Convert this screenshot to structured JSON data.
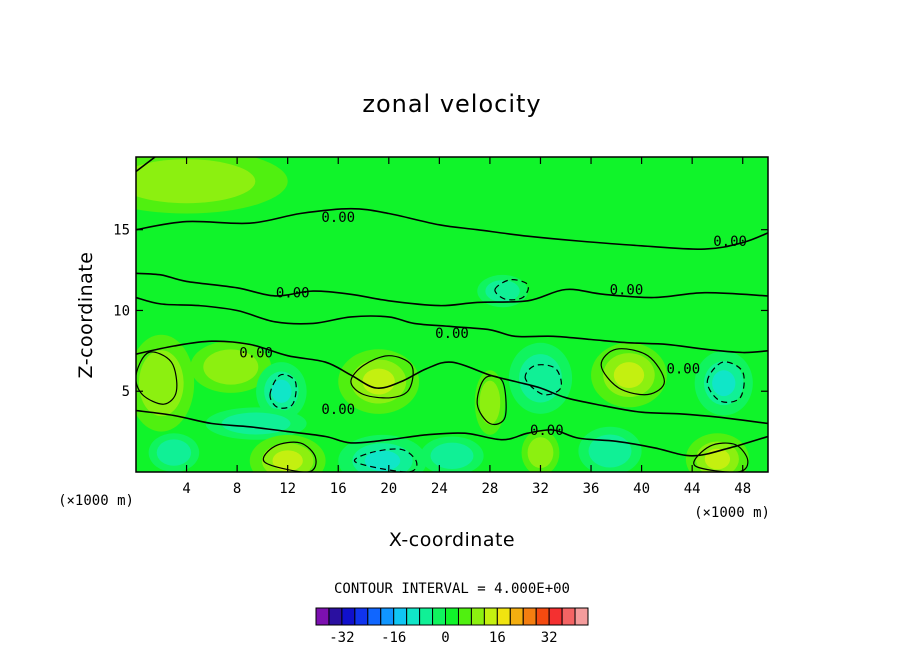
{
  "chart_data": {
    "type": "contour",
    "title": "zonal velocity",
    "xlabel": "X-coordinate",
    "ylabel": "Z-coordinate",
    "x_unit": "(×1000 m)",
    "y_unit": "(×1000 m)",
    "xlim": [
      0,
      50
    ],
    "ylim": [
      0,
      19.5
    ],
    "x_ticks": [
      4,
      8,
      12,
      16,
      20,
      24,
      28,
      32,
      36,
      40,
      44,
      48
    ],
    "y_ticks": [
      5,
      10,
      15
    ],
    "contour_interval_text": "CONTOUR INTERVAL = 4.000E+00",
    "contour_labels": [
      {
        "text": "0.00",
        "x": 16.0,
        "y": 15.8
      },
      {
        "text": "0.00",
        "x": 47.0,
        "y": 14.3
      },
      {
        "text": "0.00",
        "x": 12.4,
        "y": 11.1
      },
      {
        "text": "0.00",
        "x": 38.8,
        "y": 11.3
      },
      {
        "text": "0.00",
        "x": 25.0,
        "y": 8.6
      },
      {
        "text": "0.00",
        "x": 9.5,
        "y": 7.4
      },
      {
        "text": "0.00",
        "x": 43.3,
        "y": 6.4
      },
      {
        "text": "0.00",
        "x": 16.0,
        "y": 3.9
      },
      {
        "text": "0.00",
        "x": 32.5,
        "y": 2.6
      }
    ],
    "colorbar": {
      "colors": [
        "#7c10b0",
        "#2a10a0",
        "#1010cc",
        "#1034ee",
        "#1066ff",
        "#1096ff",
        "#10c6f4",
        "#10e6c8",
        "#10f096",
        "#10f45e",
        "#10f42a",
        "#50f010",
        "#8cf010",
        "#c4f010",
        "#f0e410",
        "#f4ae10",
        "#f47e10",
        "#f44a10",
        "#f43030",
        "#f46464",
        "#f49c9c"
      ],
      "tick_labels": [
        "-32",
        "-16",
        "0",
        "16",
        "32"
      ],
      "tick_values": [
        -32,
        -16,
        0,
        16,
        32
      ],
      "range": [
        -40,
        44
      ]
    },
    "field_colors": {
      "bg": "#10f42a",
      "pos1": "#50f010",
      "pos2": "#8cf010",
      "pos3": "#c4f010",
      "neg1": "#10f45e",
      "neg2": "#10f096",
      "neg3": "#10e6c8"
    },
    "blobs": [
      {
        "x": 2.0,
        "y": 5.5,
        "rx": 2.6,
        "ry": 3.0,
        "v": 5
      },
      {
        "x": 7.5,
        "y": 6.5,
        "rx": 3.2,
        "ry": 1.6,
        "v": 5
      },
      {
        "x": 11.5,
        "y": 5.0,
        "rx": 2.0,
        "ry": 1.8,
        "v": -9
      },
      {
        "x": 9.5,
        "y": 3.0,
        "rx": 4.0,
        "ry": 1.0,
        "v": -5
      },
      {
        "x": 12.0,
        "y": 0.7,
        "rx": 3.0,
        "ry": 1.6,
        "v": 10
      },
      {
        "x": 19.2,
        "y": 5.6,
        "rx": 3.2,
        "ry": 2.0,
        "v": 10
      },
      {
        "x": 19.5,
        "y": 0.7,
        "rx": 3.5,
        "ry": 1.6,
        "v": -9
      },
      {
        "x": 28.0,
        "y": 4.3,
        "rx": 1.2,
        "ry": 2.0,
        "v": 5
      },
      {
        "x": 32.0,
        "y": 5.8,
        "rx": 2.5,
        "ry": 2.2,
        "v": -7
      },
      {
        "x": 32.0,
        "y": 1.2,
        "rx": 1.5,
        "ry": 1.4,
        "v": 5
      },
      {
        "x": 29.0,
        "y": 11.2,
        "rx": 2.0,
        "ry": 1.0,
        "v": -5
      },
      {
        "x": 39.0,
        "y": 6.0,
        "rx": 3.0,
        "ry": 2.0,
        "v": 10
      },
      {
        "x": 37.5,
        "y": 1.3,
        "rx": 2.5,
        "ry": 1.5,
        "v": -5
      },
      {
        "x": 46.5,
        "y": 5.5,
        "rx": 2.3,
        "ry": 2.0,
        "v": -8
      },
      {
        "x": 46.0,
        "y": 0.8,
        "rx": 2.5,
        "ry": 1.6,
        "v": 10
      },
      {
        "x": 3.0,
        "y": 1.2,
        "rx": 2.0,
        "ry": 1.2,
        "v": -5
      },
      {
        "x": 25.0,
        "y": 1.0,
        "rx": 2.5,
        "ry": 1.2,
        "v": -5
      },
      {
        "x": 4.0,
        "y": 18.0,
        "rx": 8.0,
        "ry": 2.0,
        "v": 5
      }
    ],
    "zero_contours": [
      [
        [
          0,
          18.6
        ],
        [
          1.5,
          19.5
        ]
      ],
      [
        [
          0,
          15.0
        ],
        [
          4,
          15.5
        ],
        [
          9,
          15.4
        ],
        [
          13,
          16.0
        ],
        [
          17,
          16.3
        ],
        [
          20,
          16.0
        ],
        [
          24,
          15.3
        ],
        [
          27,
          15.0
        ],
        [
          31,
          14.6
        ],
        [
          35,
          14.3
        ],
        [
          40,
          14.0
        ],
        [
          45,
          13.8
        ],
        [
          48,
          14.2
        ],
        [
          50,
          14.8
        ]
      ],
      [
        [
          0,
          12.3
        ],
        [
          2,
          12.2
        ],
        [
          4,
          11.8
        ],
        [
          8,
          11.4
        ],
        [
          11,
          10.9
        ],
        [
          14,
          11.2
        ],
        [
          17,
          11.0
        ],
        [
          20,
          10.6
        ],
        [
          24,
          10.3
        ],
        [
          27,
          10.5
        ],
        [
          31,
          10.6
        ],
        [
          34,
          11.3
        ],
        [
          37,
          11.0
        ],
        [
          41,
          10.8
        ],
        [
          45,
          11.1
        ],
        [
          50,
          10.9
        ]
      ],
      [
        [
          0,
          10.8
        ],
        [
          2,
          10.4
        ],
        [
          5,
          10.3
        ],
        [
          8,
          10.0
        ],
        [
          11,
          9.3
        ],
        [
          14,
          9.2
        ],
        [
          17,
          9.6
        ],
        [
          20,
          9.6
        ],
        [
          22,
          9.2
        ],
        [
          25,
          9.0
        ],
        [
          28,
          8.8
        ],
        [
          30,
          8.4
        ],
        [
          33,
          8.4
        ],
        [
          36,
          8.2
        ],
        [
          39,
          8.0
        ],
        [
          42,
          7.9
        ],
        [
          45,
          7.6
        ],
        [
          48,
          7.4
        ],
        [
          50,
          7.5
        ]
      ],
      [
        [
          0,
          7.3
        ],
        [
          3,
          7.8
        ],
        [
          6,
          8.1
        ],
        [
          9,
          7.9
        ],
        [
          12,
          7.2
        ],
        [
          15,
          6.8
        ],
        [
          17,
          6.0
        ],
        [
          19,
          5.2
        ],
        [
          21,
          5.6
        ],
        [
          23,
          6.4
        ],
        [
          25,
          6.8
        ],
        [
          28,
          6.0
        ],
        [
          30,
          5.6
        ],
        [
          32,
          5.2
        ],
        [
          34,
          4.6
        ],
        [
          37,
          4.1
        ],
        [
          40,
          3.7
        ],
        [
          43,
          3.6
        ],
        [
          46,
          3.4
        ],
        [
          50,
          3.0
        ]
      ],
      [
        [
          0,
          3.8
        ],
        [
          3,
          3.5
        ],
        [
          6,
          3.0
        ],
        [
          9,
          2.8
        ],
        [
          12,
          2.5
        ],
        [
          15,
          2.2
        ],
        [
          17,
          1.8
        ],
        [
          20,
          2.0
        ],
        [
          23,
          2.3
        ],
        [
          26,
          2.4
        ],
        [
          29,
          2.0
        ],
        [
          31,
          2.4
        ],
        [
          33,
          2.6
        ],
        [
          35,
          2.1
        ],
        [
          38,
          1.9
        ],
        [
          41,
          1.5
        ],
        [
          44,
          1.0
        ],
        [
          47,
          1.5
        ],
        [
          50,
          2.2
        ]
      ]
    ],
    "pos_contours": [
      [
        [
          0,
          6.0
        ],
        [
          1,
          7.4
        ],
        [
          2.8,
          6.8
        ],
        [
          3.2,
          5.0
        ],
        [
          2.2,
          4.2
        ],
        [
          0.5,
          4.8
        ]
      ],
      [
        [
          17.0,
          5.6
        ],
        [
          18.0,
          6.6
        ],
        [
          20.0,
          7.2
        ],
        [
          21.8,
          6.6
        ],
        [
          21.6,
          5.1
        ],
        [
          20.2,
          4.6
        ],
        [
          18.0,
          4.8
        ]
      ],
      [
        [
          36.8,
          6.6
        ],
        [
          38.0,
          7.6
        ],
        [
          40.5,
          7.2
        ],
        [
          41.8,
          5.6
        ],
        [
          40.5,
          4.8
        ],
        [
          38.2,
          5.2
        ]
      ],
      [
        [
          10.2,
          0.6
        ],
        [
          11.0,
          1.6
        ],
        [
          13.0,
          1.8
        ],
        [
          14.2,
          0.9
        ],
        [
          13.6,
          0.0
        ]
      ],
      [
        [
          44.2,
          0.4
        ],
        [
          45.4,
          1.6
        ],
        [
          47.4,
          1.7
        ],
        [
          48.4,
          0.7
        ],
        [
          47.6,
          0.0
        ]
      ],
      [
        [
          27.0,
          4.2
        ],
        [
          27.6,
          5.8
        ],
        [
          29.0,
          5.6
        ],
        [
          29.2,
          3.4
        ],
        [
          28.0,
          3.0
        ]
      ]
    ],
    "neg_contours": [
      [
        [
          10.6,
          4.8
        ],
        [
          11.4,
          6.0
        ],
        [
          12.6,
          5.6
        ],
        [
          12.4,
          4.2
        ],
        [
          11.2,
          4.0
        ]
      ],
      [
        [
          30.8,
          5.8
        ],
        [
          31.6,
          6.6
        ],
        [
          33.2,
          6.4
        ],
        [
          33.6,
          5.2
        ],
        [
          32.2,
          4.8
        ]
      ],
      [
        [
          45.2,
          5.6
        ],
        [
          46.4,
          6.8
        ],
        [
          48.0,
          6.2
        ],
        [
          47.8,
          4.6
        ],
        [
          46.2,
          4.4
        ]
      ],
      [
        [
          17.4,
          0.6
        ],
        [
          18.6,
          1.2
        ],
        [
          21.0,
          1.4
        ],
        [
          22.2,
          0.6
        ],
        [
          21.4,
          0.0
        ]
      ],
      [
        [
          28.4,
          11.3
        ],
        [
          29.6,
          11.9
        ],
        [
          31.0,
          11.6
        ],
        [
          30.6,
          10.8
        ],
        [
          29.2,
          10.7
        ]
      ]
    ]
  }
}
